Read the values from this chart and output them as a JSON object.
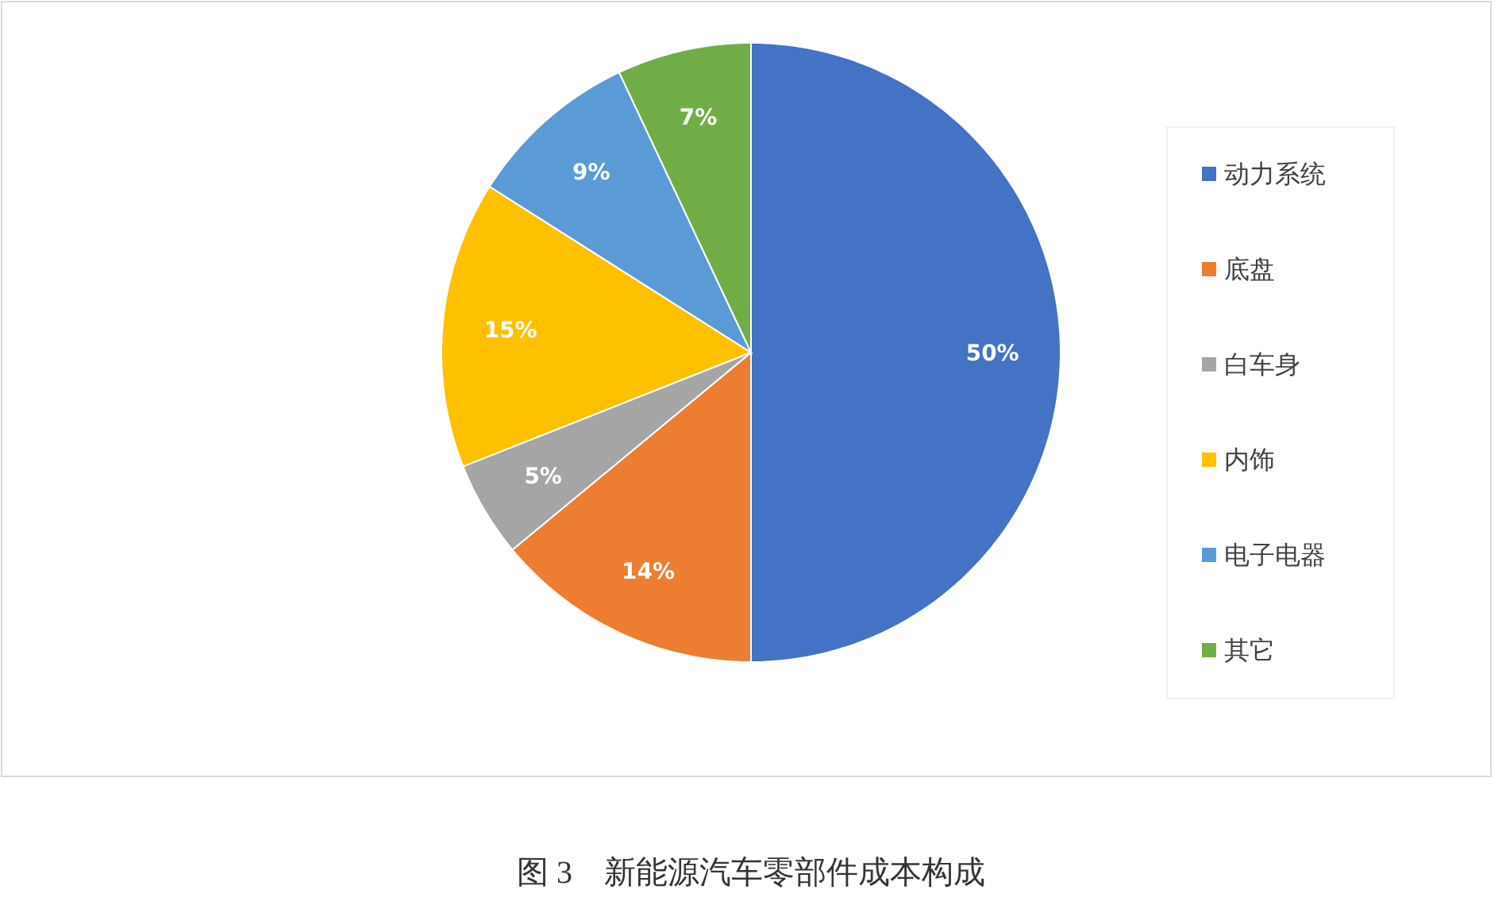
{
  "chart_data": {
    "type": "pie",
    "title": "图 3　新能源汽车零部件成本构成",
    "categories": [
      "动力系统",
      "底盘",
      "白车身",
      "内饰",
      "电子电器",
      "其它"
    ],
    "values": [
      50,
      14,
      5,
      15,
      9,
      7
    ],
    "colors": [
      "#4472c4",
      "#ed7d31",
      "#a5a5a5",
      "#ffc000",
      "#5b9bd5",
      "#70ad47"
    ],
    "value_labels": [
      "50%",
      "14%",
      "5%",
      "15%",
      "9%",
      "7%"
    ],
    "legend": "right"
  }
}
